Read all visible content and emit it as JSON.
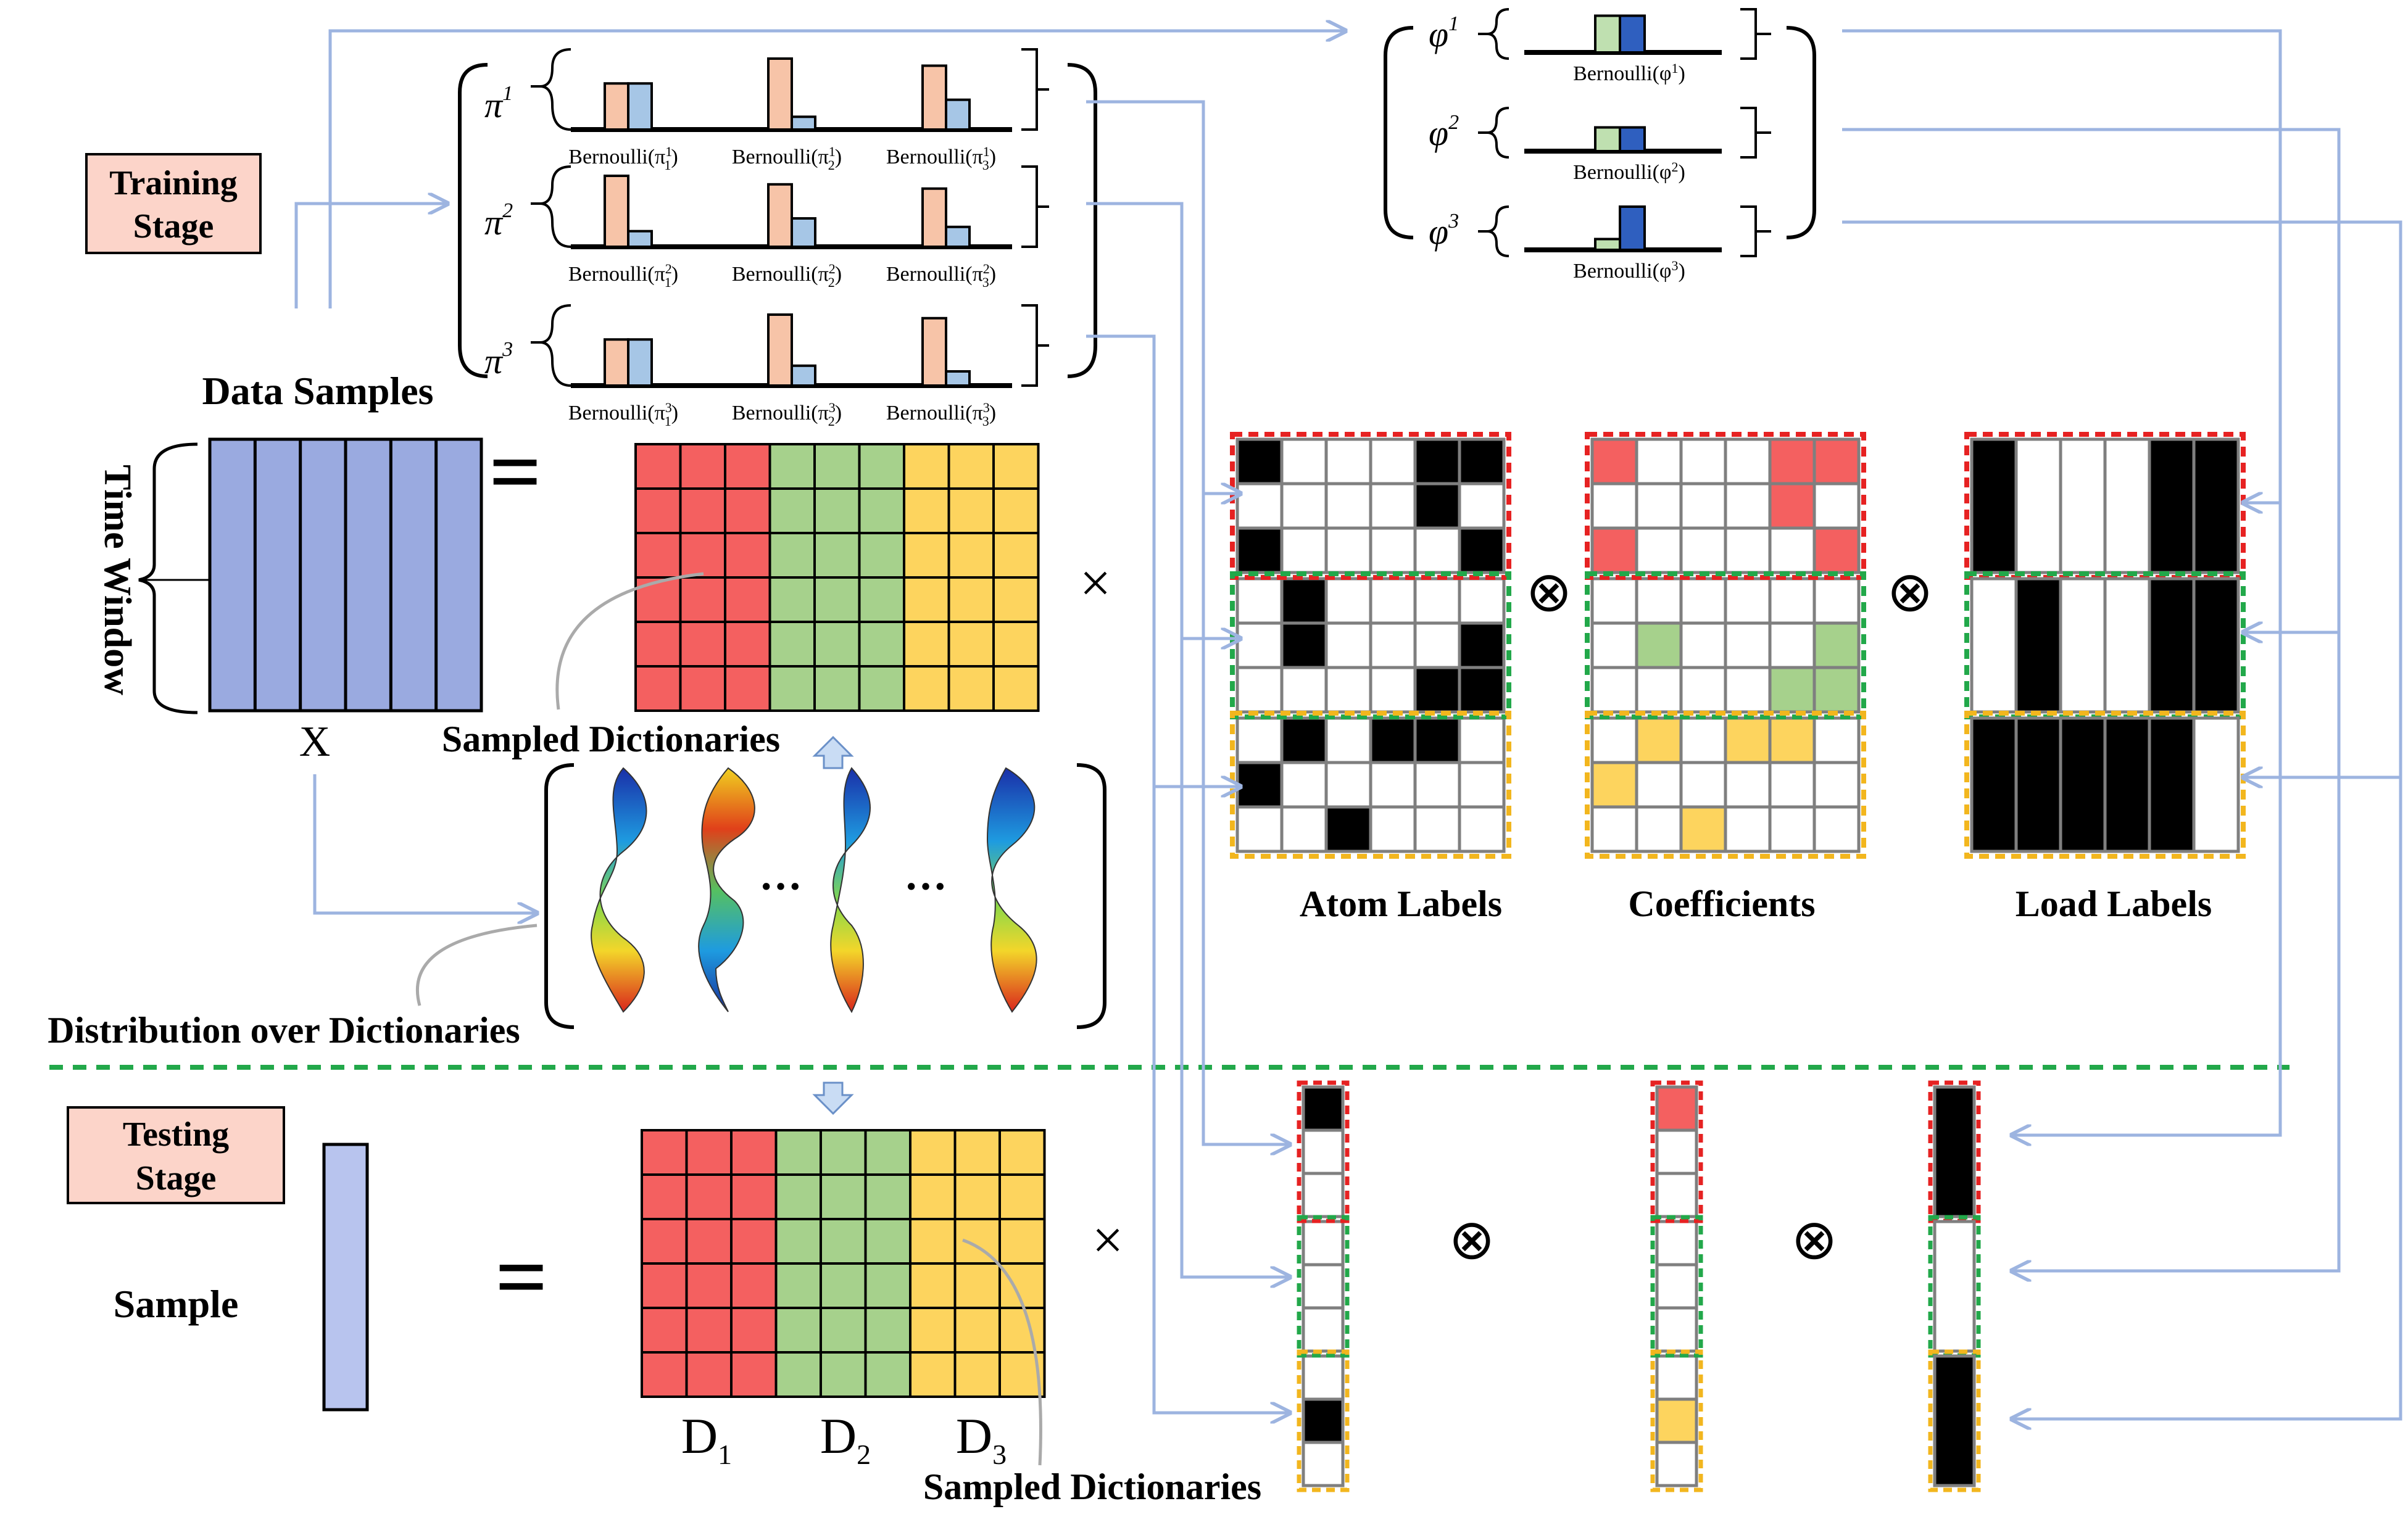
{
  "labels": {
    "training_stage_line1": "Training",
    "training_stage_line2": "Stage",
    "testing_stage_line1": "Testing",
    "testing_stage_line2": "Stage",
    "data_samples": "Data Samples",
    "time_window": "Time Window",
    "x_label": "X",
    "sampled_dictionaries_top": "Sampled Dictionaries",
    "sampled_dictionaries_bottom": "Sampled Dictionaries",
    "distribution_over_dictionaries": "Distribution over Dictionaries",
    "sample": "Sample",
    "atom_labels": "Atom Labels",
    "coefficients": "Coefficients",
    "load_labels": "Load Labels",
    "equals": "=",
    "times": "×",
    "otimes": "⊗",
    "ellipsis": "···"
  },
  "dictionary_labels": [
    "D",
    "D",
    "D"
  ],
  "dictionary_subscripts": [
    "1",
    "2",
    "3"
  ],
  "pi_rows": [
    {
      "sym": "π",
      "sup": "1",
      "captions": [
        {
          "base": "Bernoulli(π",
          "sub": "1",
          "sup": "1"
        },
        {
          "base": "Bernoulli(π",
          "sub": "2",
          "sup": "1"
        },
        {
          "base": "Bernoulli(π",
          "sub": "3",
          "sup": "1"
        }
      ]
    },
    {
      "sym": "π",
      "sup": "2",
      "captions": [
        {
          "base": "Bernoulli(π",
          "sub": "1",
          "sup": "2"
        },
        {
          "base": "Bernoulli(π",
          "sub": "2",
          "sup": "2"
        },
        {
          "base": "Bernoulli(π",
          "sub": "3",
          "sup": "2"
        }
      ]
    },
    {
      "sym": "π",
      "sup": "3",
      "captions": [
        {
          "base": "Bernoulli(π",
          "sub": "1",
          "sup": "3"
        },
        {
          "base": "Bernoulli(π",
          "sub": "2",
          "sup": "3"
        },
        {
          "base": "Bernoulli(π",
          "sub": "3",
          "sup": "3"
        }
      ]
    }
  ],
  "phi_rows": [
    {
      "sym": "φ",
      "sup": "1",
      "caption": "Bernoulli(φ",
      "csup": "1"
    },
    {
      "sym": "φ",
      "sup": "2",
      "caption": "Bernoulli(φ",
      "csup": "2"
    },
    {
      "sym": "φ",
      "sup": "3",
      "caption": "Bernoulli(φ",
      "csup": "3"
    }
  ],
  "pi_bar_heights": [
    [
      [
        0.65,
        0.65
      ],
      [
        1.0,
        0.18
      ],
      [
        0.9,
        0.42
      ]
    ],
    [
      [
        1.0,
        0.22
      ],
      [
        0.88,
        0.4
      ],
      [
        0.82,
        0.28
      ]
    ],
    [
      [
        0.65,
        0.65
      ],
      [
        1.0,
        0.28
      ],
      [
        0.95,
        0.2
      ]
    ]
  ],
  "phi_bar_heights": [
    [
      0.85,
      0.85
    ],
    [
      0.55,
      0.55
    ],
    [
      0.25,
      1.0
    ]
  ],
  "colors": {
    "red": "#f46060",
    "green": "#a6d18c",
    "yellow": "#fdd45e",
    "blue_fill": "#9aaae0",
    "arrow": "#9db4e0",
    "pink_box": "#fcd4c9",
    "pi_bar": "#f7c4a8",
    "pi_bar2": "#a6c6e6",
    "phi_bar1": "#bfe0b0",
    "phi_bar2": "#2f5fbf",
    "red_dash": "#e62222",
    "green_dash": "#22a84a",
    "yellow_dash": "#f2b61e",
    "gray": "#7f7f7f"
  },
  "atom_labels": [
    [
      1,
      0,
      0,
      0,
      1,
      1
    ],
    [
      0,
      0,
      0,
      0,
      1,
      0
    ],
    [
      1,
      0,
      0,
      0,
      0,
      1
    ],
    [
      0,
      1,
      0,
      0,
      0,
      0
    ],
    [
      0,
      1,
      0,
      0,
      0,
      1
    ],
    [
      0,
      0,
      0,
      0,
      1,
      1
    ],
    [
      0,
      1,
      0,
      1,
      1,
      0
    ],
    [
      1,
      0,
      0,
      0,
      0,
      0
    ],
    [
      0,
      0,
      1,
      0,
      0,
      0
    ]
  ],
  "coefficients": [
    [
      1,
      0,
      0,
      0,
      1,
      1
    ],
    [
      0,
      0,
      0,
      0,
      1,
      0
    ],
    [
      1,
      0,
      0,
      0,
      0,
      1
    ],
    [
      0,
      0,
      0,
      0,
      0,
      0
    ],
    [
      0,
      1,
      0,
      0,
      0,
      1
    ],
    [
      0,
      0,
      0,
      0,
      1,
      1
    ],
    [
      0,
      1,
      0,
      1,
      1,
      0
    ],
    [
      1,
      0,
      0,
      0,
      0,
      0
    ],
    [
      0,
      0,
      1,
      0,
      0,
      0
    ]
  ],
  "load_labels": [
    [
      1,
      0,
      0,
      0,
      1,
      1
    ],
    [
      0,
      1,
      0,
      0,
      1,
      1
    ],
    [
      1,
      1,
      1,
      1,
      1,
      0
    ]
  ],
  "test_atom_labels": [
    1,
    0,
    0,
    0,
    0,
    0,
    0,
    1,
    0
  ],
  "test_coefficients": [
    1,
    0,
    0,
    0,
    0,
    0,
    0,
    1,
    0
  ],
  "test_load_labels": [
    1,
    0,
    1
  ]
}
